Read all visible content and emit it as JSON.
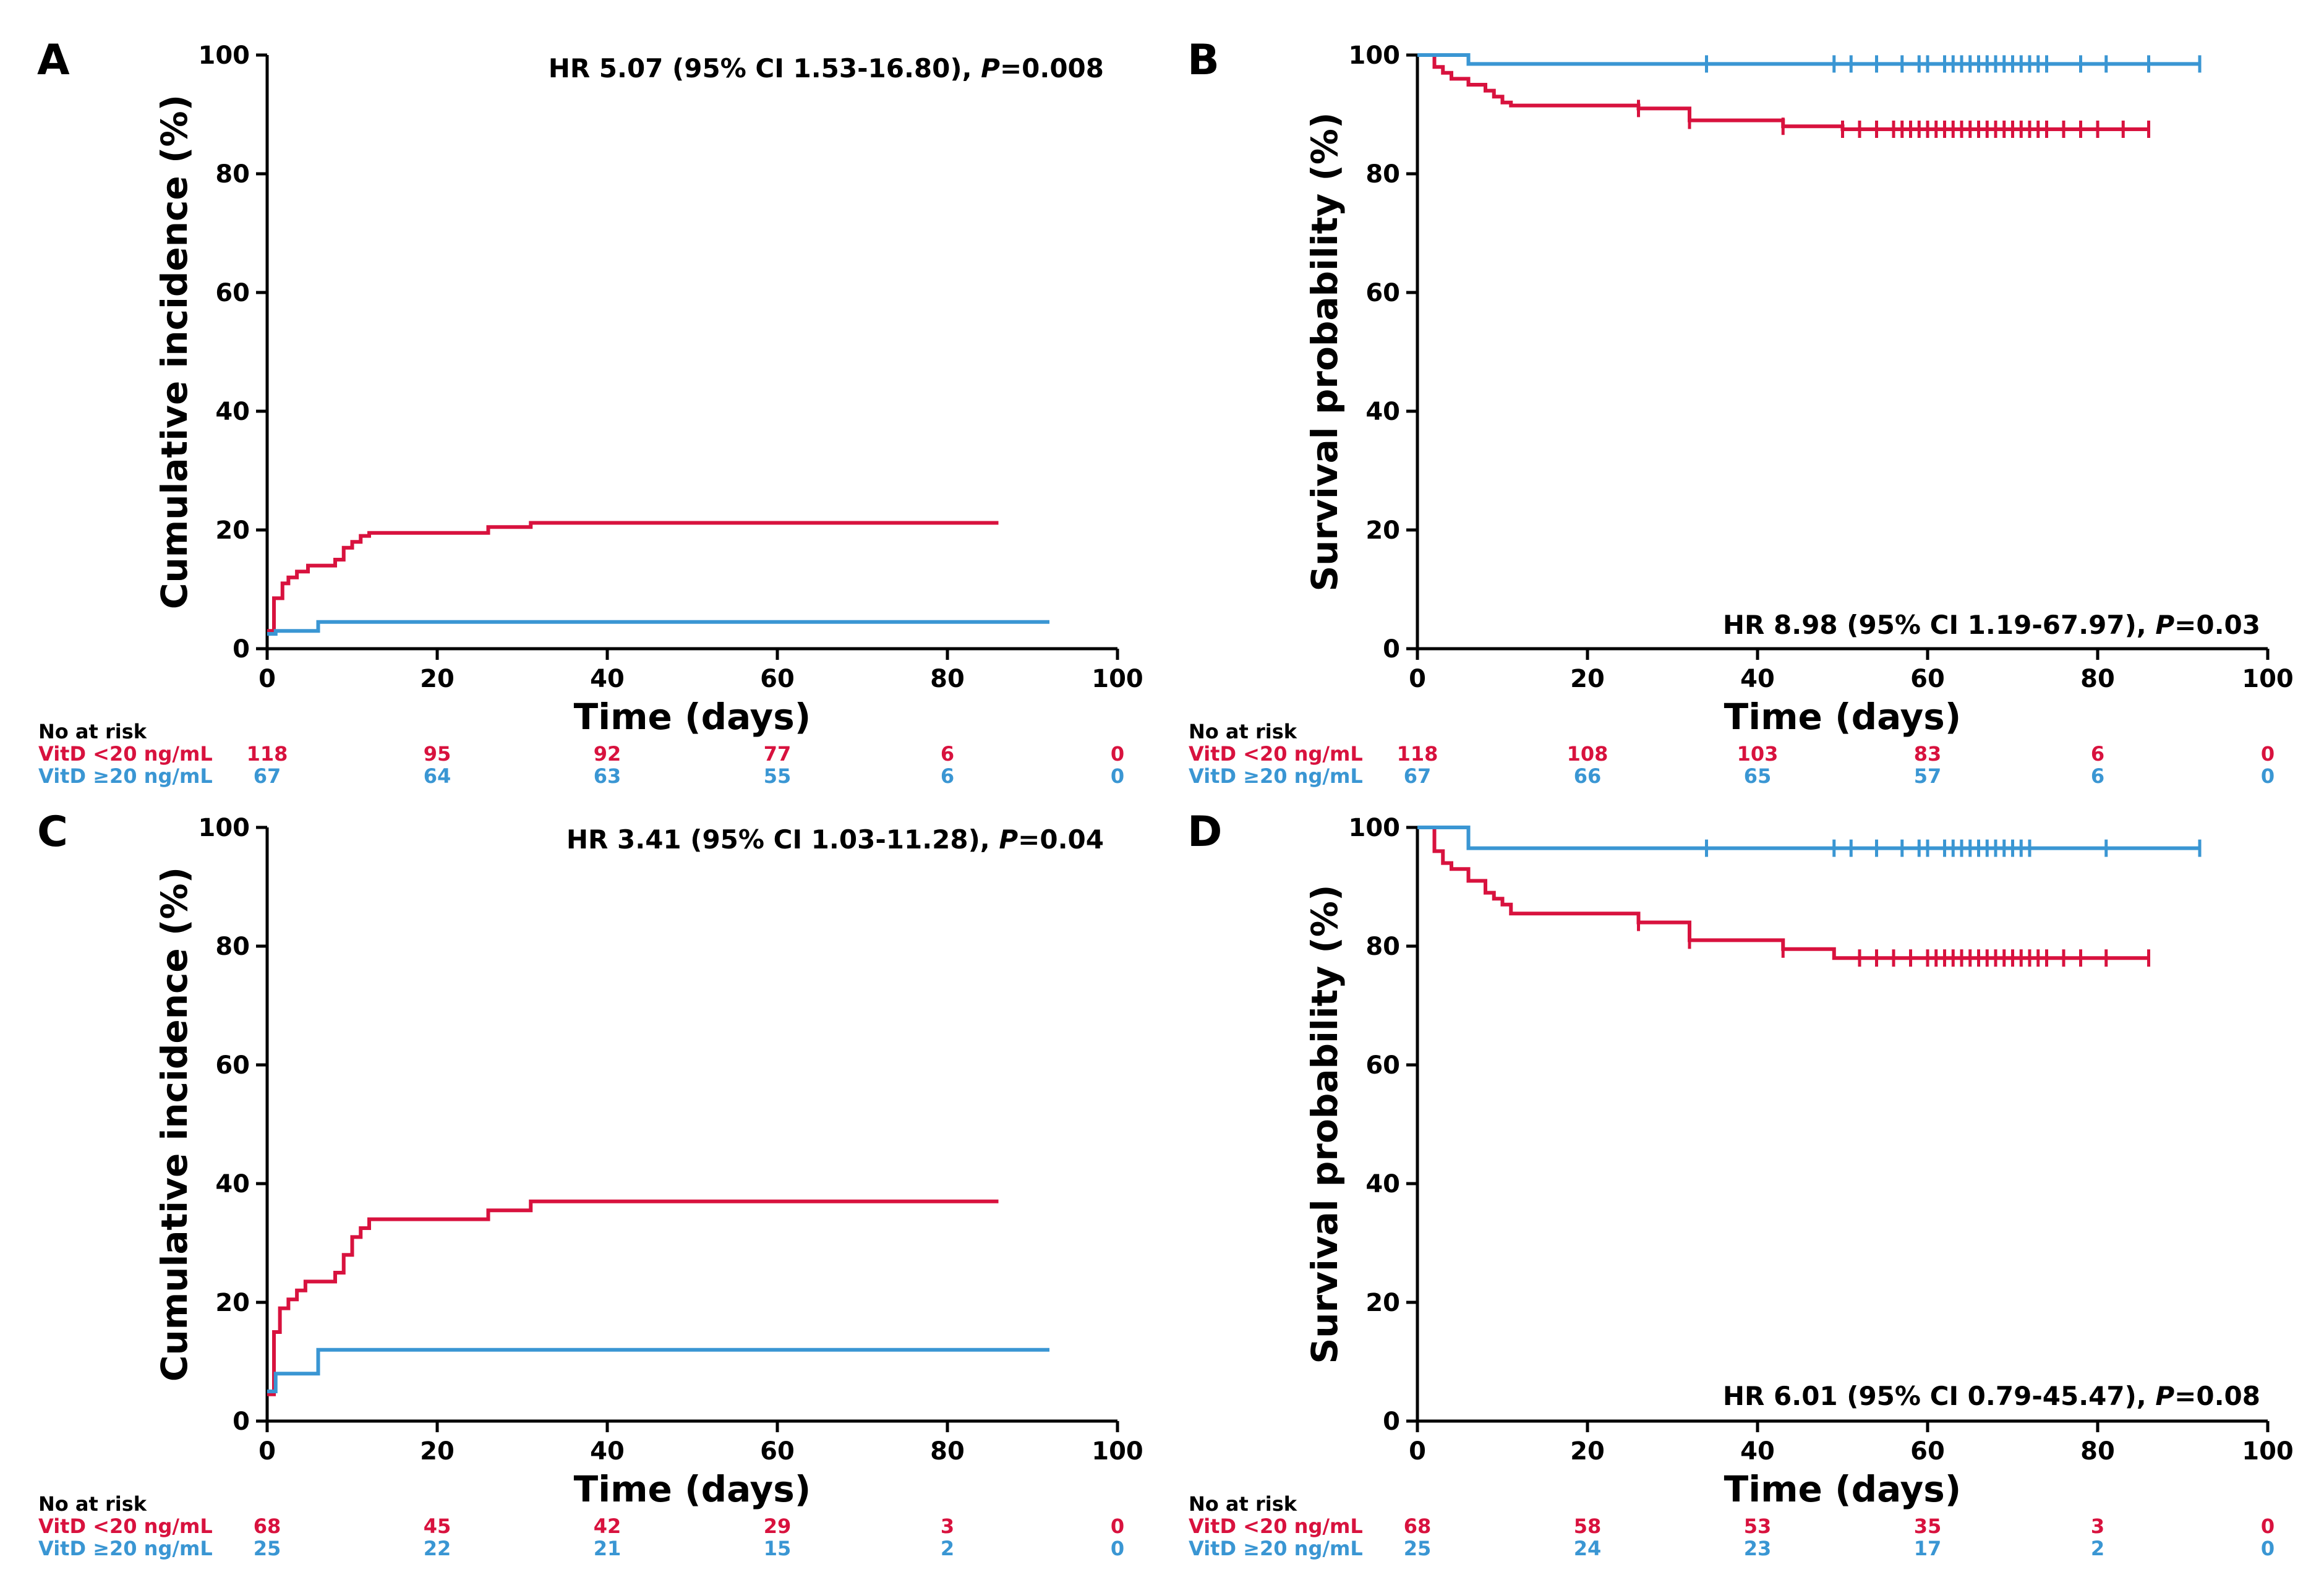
{
  "colors": {
    "red": "#d8123e",
    "blue": "#3a96d3",
    "axis": "#000000"
  },
  "x_axis_label": "Time (days)",
  "at_risk_header": "No at risk",
  "group_labels": [
    "VitD <20 ng/mL",
    "VitD ≥20 ng/mL"
  ],
  "chart_data": [
    {
      "panel": "A",
      "type": "line",
      "step": true,
      "ylabel": "Cumulative incidence (%)",
      "xlabel": "Time (days)",
      "xlim": [
        0,
        100
      ],
      "ylim": [
        0,
        100
      ],
      "xticks": [
        "0",
        "20",
        "40",
        "60",
        "80",
        "100"
      ],
      "yticks": [
        "0",
        "20",
        "40",
        "60",
        "80",
        "100"
      ],
      "annotation": {
        "prefix": "HR 5.07 (95% CI 1.53-16.80), ",
        "p_label": "P",
        "p_value": "=0.008",
        "position": "top"
      },
      "series": [
        {
          "name": "VitD <20 ng/mL",
          "color": "#d8123e",
          "x": [
            0,
            0.8,
            1.8,
            2.5,
            3.5,
            4.8,
            8,
            9,
            10,
            11,
            12,
            26,
            31,
            86
          ],
          "y": [
            3,
            8.5,
            11,
            12,
            13,
            14,
            15,
            17,
            18,
            19,
            19.5,
            20.5,
            21.2,
            21.2
          ],
          "censored": []
        },
        {
          "name": "VitD ≥20 ng/mL",
          "color": "#3a96d3",
          "x": [
            0,
            1,
            6,
            92
          ],
          "y": [
            2.5,
            3,
            4.5,
            4.5
          ],
          "censored": []
        }
      ],
      "at_risk": {
        "x": [
          0,
          20,
          40,
          60,
          80,
          100
        ],
        "rows": [
          {
            "name": "VitD <20 ng/mL",
            "values": [
              "118",
              "95",
              "92",
              "77",
              "6",
              "0"
            ]
          },
          {
            "name": "VitD ≥20 ng/mL",
            "values": [
              "67",
              "64",
              "63",
              "55",
              "6",
              "0"
            ]
          }
        ]
      }
    },
    {
      "panel": "B",
      "type": "line",
      "step": true,
      "ylabel": "Survival probability (%)",
      "xlabel": "Time (days)",
      "xlim": [
        0,
        100
      ],
      "ylim": [
        0,
        100
      ],
      "xticks": [
        "0",
        "20",
        "40",
        "60",
        "80",
        "100"
      ],
      "yticks": [
        "0",
        "20",
        "40",
        "60",
        "80",
        "100"
      ],
      "annotation": {
        "prefix": "HR 8.98 (95% CI 1.19-67.97), ",
        "p_label": "P",
        "p_value": "=0.03",
        "position": "bottom"
      },
      "series": [
        {
          "name": "VitD <20 ng/mL",
          "color": "#d8123e",
          "x": [
            0,
            2,
            3,
            4,
            6,
            8,
            9,
            10,
            11,
            26,
            32,
            43,
            50,
            86
          ],
          "y": [
            100,
            98,
            97,
            96,
            95,
            94,
            93,
            92,
            91.5,
            91,
            89,
            88,
            87.5,
            87.5
          ],
          "censored": [
            26,
            32,
            43,
            50,
            52,
            54,
            56,
            57,
            58,
            59,
            60,
            61,
            62,
            63,
            64,
            65,
            66,
            67,
            68,
            69,
            70,
            71,
            72,
            73,
            74,
            76,
            78,
            80,
            83,
            86
          ]
        },
        {
          "name": "VitD ≥20 ng/mL",
          "color": "#3a96d3",
          "x": [
            0,
            6,
            92
          ],
          "y": [
            100,
            98.5,
            98.5
          ],
          "censored": [
            34,
            49,
            51,
            54,
            57,
            59,
            60,
            62,
            63,
            64,
            65,
            66,
            67,
            68,
            69,
            70,
            71,
            72,
            73,
            74,
            78,
            81,
            86,
            92
          ]
        }
      ],
      "at_risk": {
        "x": [
          0,
          20,
          40,
          60,
          80,
          100
        ],
        "rows": [
          {
            "name": "VitD <20 ng/mL",
            "values": [
              "118",
              "108",
              "103",
              "83",
              "6",
              "0"
            ]
          },
          {
            "name": "VitD ≥20 ng/mL",
            "values": [
              "67",
              "66",
              "65",
              "57",
              "6",
              "0"
            ]
          }
        ]
      }
    },
    {
      "panel": "C",
      "type": "line",
      "step": true,
      "ylabel": "Cumulative incidence (%)",
      "xlabel": "Time (days)",
      "xlim": [
        0,
        100
      ],
      "ylim": [
        0,
        100
      ],
      "xticks": [
        "0",
        "20",
        "40",
        "60",
        "80",
        "100"
      ],
      "yticks": [
        "0",
        "20",
        "40",
        "60",
        "80",
        "100"
      ],
      "annotation": {
        "prefix": "HR 3.41 (95% CI 1.03-11.28), ",
        "p_label": "P",
        "p_value": "=0.04",
        "position": "top"
      },
      "series": [
        {
          "name": "VitD <20 ng/mL",
          "color": "#d8123e",
          "x": [
            0,
            0.8,
            1.5,
            2.5,
            3.5,
            4.5,
            8,
            9,
            10,
            11,
            12,
            26,
            31,
            86
          ],
          "y": [
            4.5,
            15,
            19,
            20.5,
            22,
            23.5,
            25,
            28,
            31,
            32.5,
            34,
            35.5,
            37,
            37
          ],
          "censored": []
        },
        {
          "name": "VitD ≥20 ng/mL",
          "color": "#3a96d3",
          "x": [
            0,
            1,
            6,
            92
          ],
          "y": [
            5,
            8,
            12,
            12
          ],
          "censored": []
        }
      ],
      "at_risk": {
        "x": [
          0,
          20,
          40,
          60,
          80,
          100
        ],
        "rows": [
          {
            "name": "VitD <20 ng/mL",
            "values": [
              "68",
              "45",
              "42",
              "29",
              "3",
              "0"
            ]
          },
          {
            "name": "VitD ≥20 ng/mL",
            "values": [
              "25",
              "22",
              "21",
              "15",
              "2",
              "0"
            ]
          }
        ]
      }
    },
    {
      "panel": "D",
      "type": "line",
      "step": true,
      "ylabel": "Survival probability (%)",
      "xlabel": "Time (days)",
      "xlim": [
        0,
        100
      ],
      "ylim": [
        0,
        100
      ],
      "xticks": [
        "0",
        "20",
        "40",
        "60",
        "80",
        "100"
      ],
      "yticks": [
        "0",
        "20",
        "40",
        "60",
        "80",
        "100"
      ],
      "annotation": {
        "prefix": "HR 6.01 (95% CI 0.79-45.47), ",
        "p_label": "P",
        "p_value": "=0.08",
        "position": "bottom"
      },
      "series": [
        {
          "name": "VitD <20 ng/mL",
          "color": "#d8123e",
          "x": [
            0,
            2,
            3,
            4,
            6,
            8,
            9,
            10,
            11,
            26,
            32,
            43,
            49,
            86
          ],
          "y": [
            100,
            96,
            94,
            93,
            91,
            89,
            88,
            87,
            85.5,
            84,
            81,
            79.5,
            78,
            78
          ],
          "censored": [
            26,
            32,
            43,
            52,
            54,
            56,
            58,
            60,
            61,
            62,
            63,
            64,
            65,
            66,
            67,
            68,
            69,
            70,
            71,
            72,
            73,
            74,
            76,
            78,
            81,
            86
          ]
        },
        {
          "name": "VitD ≥20 ng/mL",
          "color": "#3a96d3",
          "x": [
            0,
            6,
            92
          ],
          "y": [
            100,
            96.5,
            96.5
          ],
          "censored": [
            34,
            49,
            51,
            54,
            57,
            59,
            60,
            62,
            63,
            64,
            65,
            66,
            67,
            68,
            69,
            70,
            71,
            72,
            81,
            92
          ]
        }
      ],
      "at_risk": {
        "x": [
          0,
          20,
          40,
          60,
          80,
          100
        ],
        "rows": [
          {
            "name": "VitD <20 ng/mL",
            "values": [
              "68",
              "58",
              "53",
              "35",
              "3",
              "0"
            ]
          },
          {
            "name": "VitD ≥20 ng/mL",
            "values": [
              "25",
              "24",
              "23",
              "17",
              "2",
              "0"
            ]
          }
        ]
      }
    }
  ]
}
